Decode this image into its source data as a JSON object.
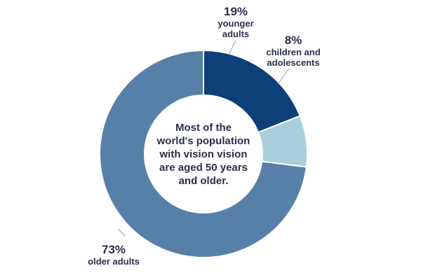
{
  "chart_data": {
    "type": "pie",
    "donut": true,
    "slices": [
      {
        "key": "older",
        "value": 73,
        "pct_label": "73%",
        "label_lines": [
          "older adults"
        ],
        "color": "#5780a9"
      },
      {
        "key": "younger",
        "value": 19,
        "pct_label": "19%",
        "label_lines": [
          "younger",
          "adults"
        ],
        "color": "#0d4079"
      },
      {
        "key": "children",
        "value": 8,
        "pct_label": "8%",
        "label_lines": [
          "children and",
          "adolescents"
        ],
        "color": "#a9cfdc"
      }
    ],
    "center_text_lines": [
      "Most of the",
      "world's population",
      "with vision vision",
      "are aged 50 years",
      "and older."
    ],
    "legend": "none"
  }
}
